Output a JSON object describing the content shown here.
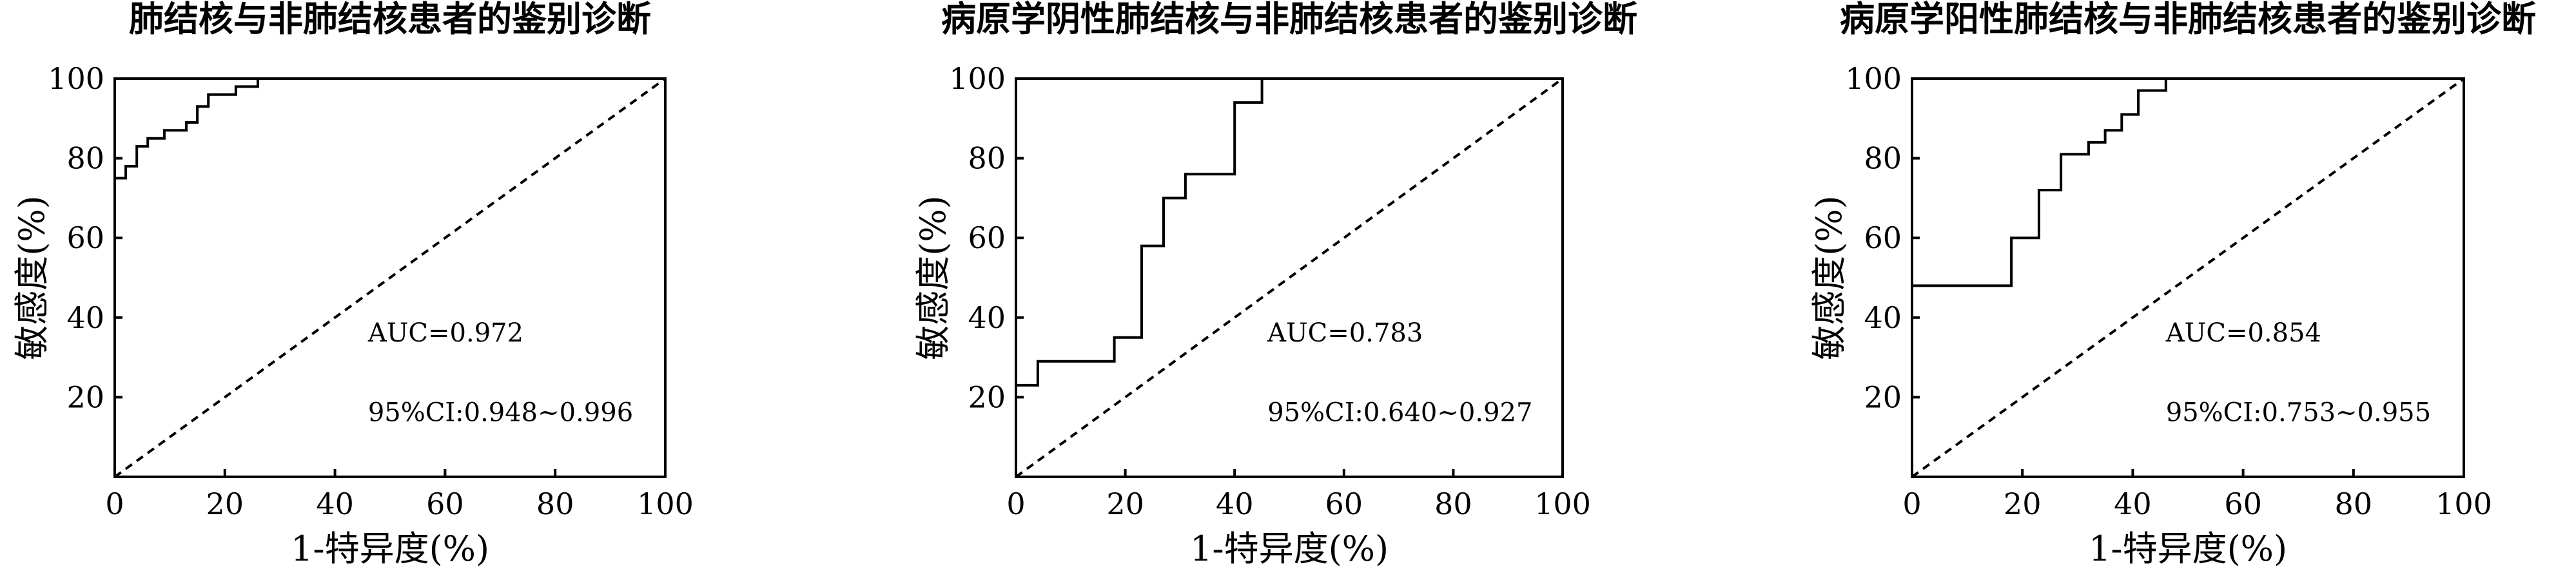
{
  "chart_data": [
    {
      "type": "line",
      "title": "肺结核与非肺结核患者的鉴别诊断",
      "xlabel": "1-特异度(%)",
      "ylabel": "敏感度(%)",
      "xlim": [
        0,
        100
      ],
      "ylim": [
        0,
        100
      ],
      "xticks": [
        "0",
        "20",
        "40",
        "60",
        "80",
        "100"
      ],
      "yticks": [
        "20",
        "40",
        "60",
        "80",
        "100"
      ],
      "grid": false,
      "annotations": [
        "AUC=0.972",
        "95%CI:0.948~0.996"
      ],
      "series": [
        {
          "name": "",
          "x": [
            0,
            0,
            2,
            2,
            4,
            4,
            6,
            6,
            9,
            9,
            13,
            13,
            15,
            15,
            17,
            17,
            22,
            22,
            26,
            26,
            100
          ],
          "y": [
            0,
            75,
            75,
            78,
            78,
            83,
            83,
            85,
            85,
            87,
            87,
            89,
            89,
            93,
            93,
            96,
            96,
            98,
            98,
            100,
            100
          ]
        },
        {
          "name": "",
          "x": [
            0,
            100
          ],
          "y": [
            0,
            100
          ]
        }
      ]
    },
    {
      "type": "line",
      "title": "病原学阴性肺结核与非肺结核患者的鉴别诊断",
      "xlabel": "1-特异度(%)",
      "ylabel": "敏感度(%)",
      "xlim": [
        0,
        100
      ],
      "ylim": [
        0,
        100
      ],
      "xticks": [
        "0",
        "20",
        "40",
        "60",
        "80",
        "100"
      ],
      "yticks": [
        "20",
        "40",
        "60",
        "80",
        "100"
      ],
      "grid": false,
      "annotations": [
        "AUC=0.783",
        "95%CI:0.640~0.927"
      ],
      "series": [
        {
          "name": "",
          "x": [
            0,
            0,
            4,
            4,
            18,
            18,
            23,
            23,
            27,
            27,
            31,
            31,
            40,
            40,
            45,
            45,
            100
          ],
          "y": [
            0,
            23,
            23,
            29,
            29,
            35,
            35,
            58,
            58,
            70,
            70,
            76,
            76,
            94,
            94,
            100,
            100
          ]
        },
        {
          "name": "",
          "x": [
            0,
            100
          ],
          "y": [
            0,
            100
          ]
        }
      ]
    },
    {
      "type": "line",
      "title": "病原学阳性肺结核与非肺结核患者的鉴别诊断",
      "xlabel": "1-特异度(%)",
      "ylabel": "敏感度(%)",
      "xlim": [
        0,
        100
      ],
      "ylim": [
        0,
        100
      ],
      "xticks": [
        "0",
        "20",
        "40",
        "60",
        "80",
        "100"
      ],
      "yticks": [
        "20",
        "40",
        "60",
        "80",
        "100"
      ],
      "grid": false,
      "annotations": [
        "AUC=0.854",
        "95%CI:0.753~0.955"
      ],
      "series": [
        {
          "name": "",
          "x": [
            0,
            0,
            18,
            18,
            23,
            23,
            27,
            27,
            32,
            32,
            35,
            35,
            38,
            38,
            41,
            41,
            46,
            46,
            100
          ],
          "y": [
            0,
            48,
            48,
            60,
            60,
            72,
            72,
            81,
            81,
            84,
            84,
            87,
            87,
            91,
            91,
            97,
            97,
            100,
            100
          ]
        },
        {
          "name": "",
          "x": [
            0,
            100
          ],
          "y": [
            0,
            100
          ]
        }
      ]
    }
  ]
}
